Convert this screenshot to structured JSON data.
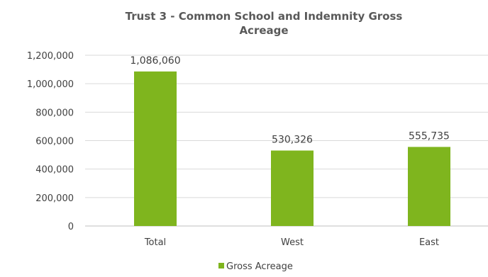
{
  "chart_data": {
    "type": "bar",
    "title": "Trust 3 - Common School and Indemnity Gross",
    "title_line2": "Acreage",
    "categories": [
      "Total",
      "West",
      "East"
    ],
    "series": [
      {
        "name": "Gross Acreage",
        "values": [
          1086060,
          530326,
          555735
        ],
        "color": "#7fb51e"
      }
    ],
    "data_labels": [
      "1,086,060",
      "530,326",
      "555,735"
    ],
    "y_ticks": [
      "0",
      "200,000",
      "400,000",
      "600,000",
      "800,000",
      "1,000,000",
      "1,200,000"
    ],
    "ylim": [
      0,
      1200000
    ],
    "grid": true,
    "legend_position": "bottom"
  }
}
